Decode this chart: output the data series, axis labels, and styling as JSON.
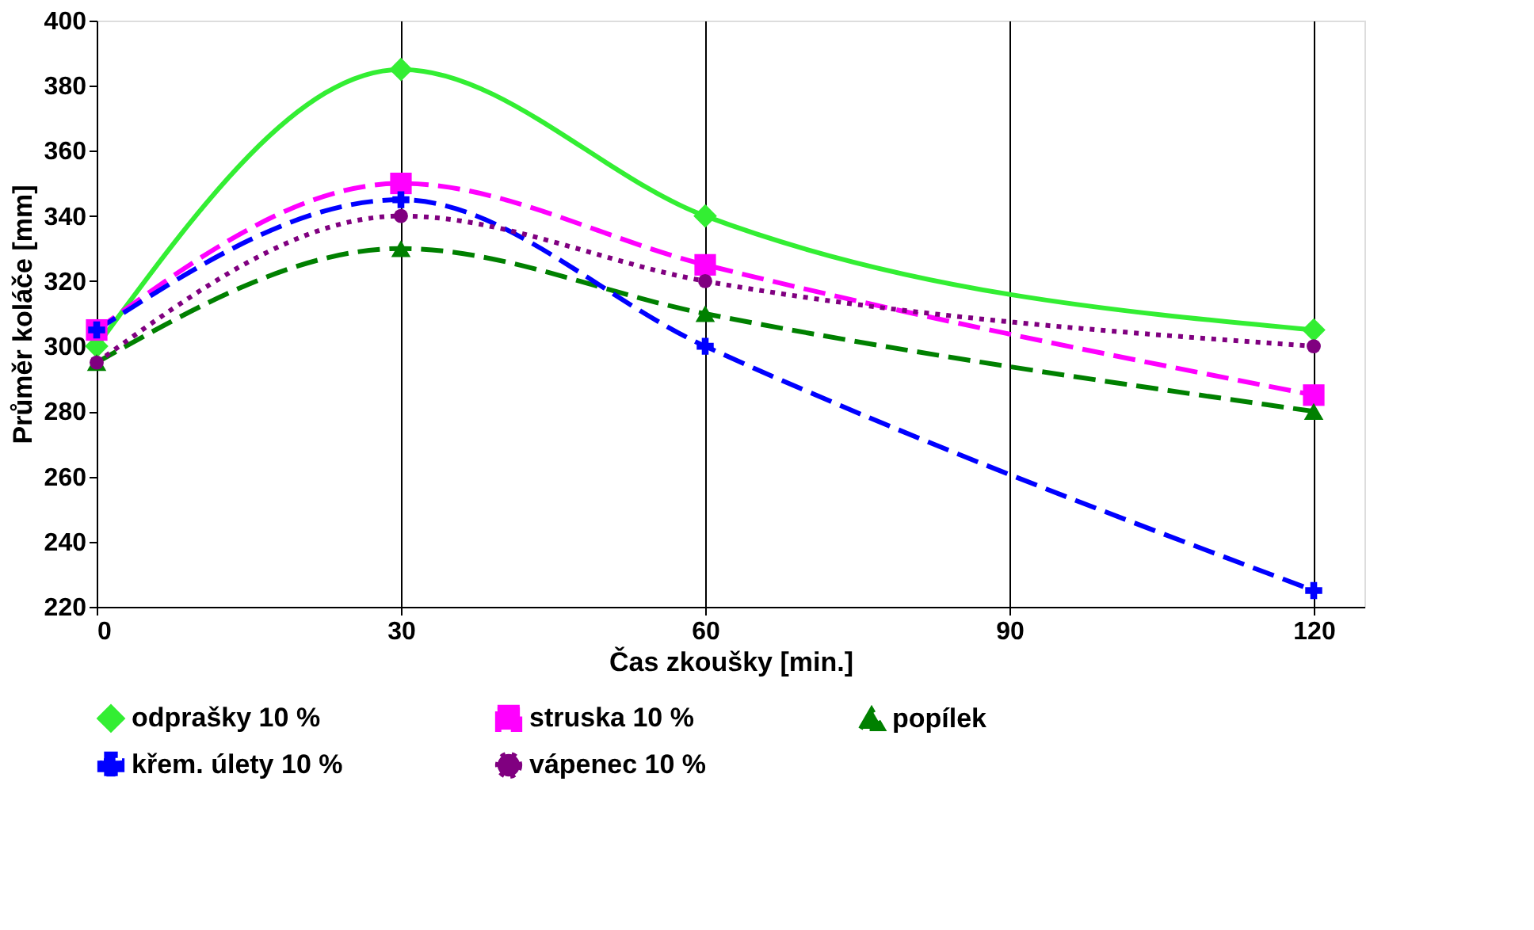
{
  "chart_data": {
    "type": "line",
    "xlabel": "Čas zkoušky   [min.]",
    "ylabel": "Průměr koláče   [mm]",
    "x": [
      0,
      30,
      60,
      120
    ],
    "xlim": [
      0,
      125
    ],
    "xticks": [
      0,
      30,
      60,
      90,
      120
    ],
    "ylim": [
      220,
      400
    ],
    "yticks": [
      220,
      240,
      260,
      280,
      300,
      320,
      340,
      360,
      380,
      400
    ],
    "grid": "x",
    "legend": "bottom",
    "series": [
      {
        "name": "odprašky 10 %",
        "color": "#33ee33",
        "values": [
          300,
          385,
          340,
          305
        ],
        "marker": "diamond",
        "line_style": "solid"
      },
      {
        "name": "struska 10 %",
        "color": "#ff00ff",
        "values": [
          305,
          350,
          325,
          285
        ],
        "marker": "square",
        "line_style": "dashed"
      },
      {
        "name": "popílek",
        "color": "#008000",
        "values": [
          295,
          330,
          310,
          280
        ],
        "marker": "triangle",
        "line_style": "dashed"
      },
      {
        "name": "křem. úlety 10 %",
        "color": "#0000ff",
        "values": [
          305,
          345,
          300,
          225
        ],
        "marker": "cross",
        "line_style": "dashed"
      },
      {
        "name": "vápenec 10 %",
        "color": "#800080",
        "values": [
          295,
          340,
          320,
          300
        ],
        "marker": "circle",
        "line_style": "dotted"
      }
    ]
  }
}
